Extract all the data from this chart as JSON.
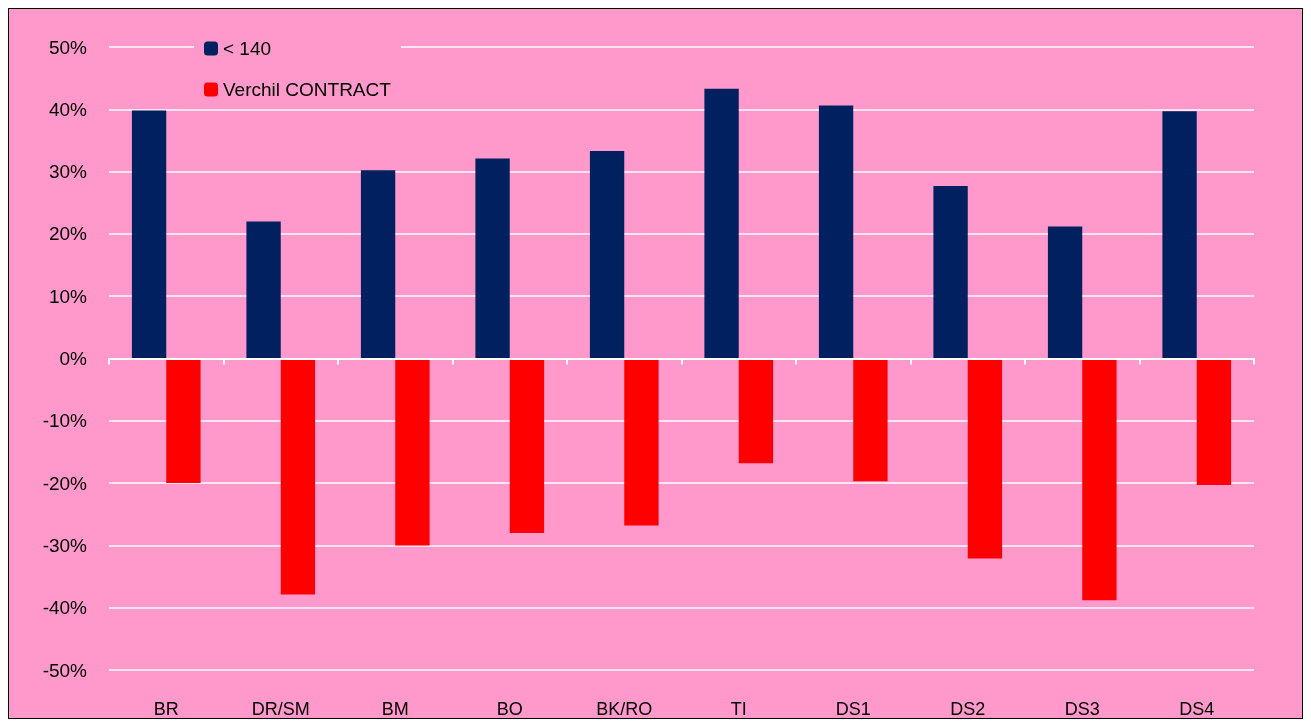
{
  "chart_data": {
    "type": "bar",
    "categories": [
      "BR",
      "DR/SM",
      "BM",
      "BO",
      "BK/RO",
      "TI",
      "DS1",
      "DS2",
      "DS3",
      "DS4"
    ],
    "series": [
      {
        "name": "< 140",
        "color": "#002060",
        "values": [
          39.8,
          22,
          30.2,
          32.1,
          33.3,
          43.3,
          40.6,
          27.7,
          21.2,
          39.7
        ]
      },
      {
        "name": "Verchil CONTRACT",
        "color": "#ff0000",
        "values": [
          -20,
          -37.9,
          -30,
          -28,
          -26.8,
          -16.8,
          -19.7,
          -32.1,
          -38.8,
          -20.3
        ]
      }
    ],
    "ylim": [
      -50,
      50
    ],
    "yticks": [
      {
        "value": -50,
        "label": "-50%"
      },
      {
        "value": -40,
        "label": "-40%"
      },
      {
        "value": -30,
        "label": "-30%"
      },
      {
        "value": -20,
        "label": "-20%"
      },
      {
        "value": -10,
        "label": "-10%"
      },
      {
        "value": 0,
        "label": "0%"
      },
      {
        "value": 10,
        "label": "10%"
      },
      {
        "value": 20,
        "label": "20%"
      },
      {
        "value": 30,
        "label": "30%"
      },
      {
        "value": 40,
        "label": "40%"
      },
      {
        "value": 50,
        "label": "50%"
      }
    ],
    "grid": "y",
    "legend": "top left"
  }
}
